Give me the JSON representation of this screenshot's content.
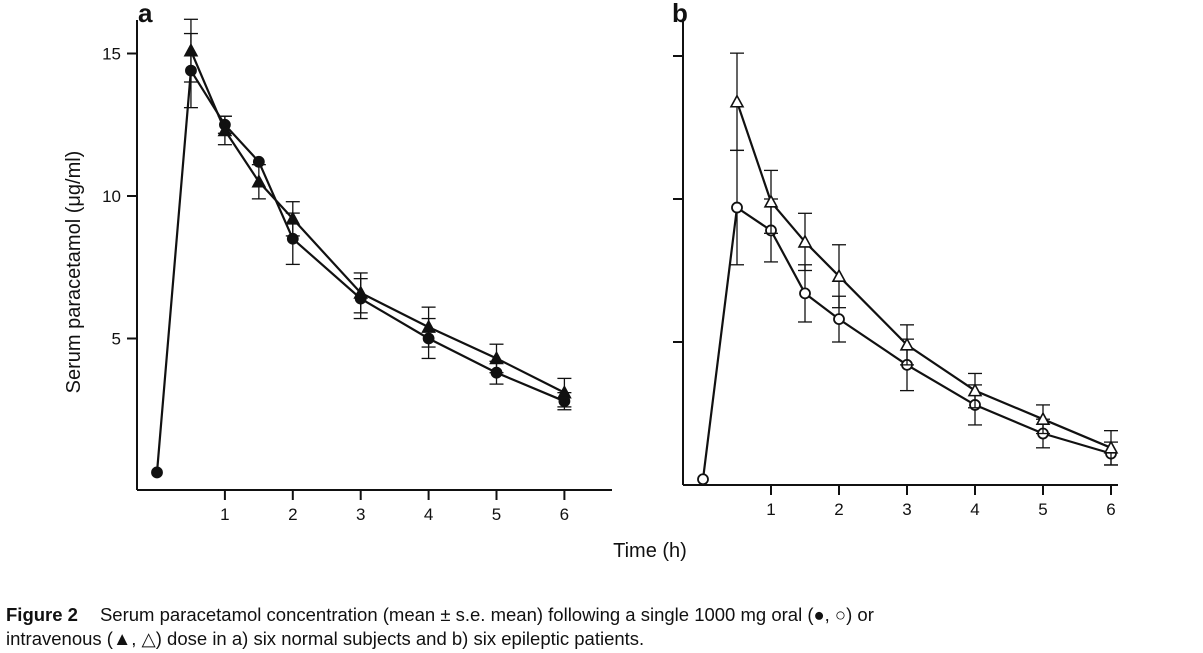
{
  "chart_data": [
    {
      "type": "line",
      "panel_label": "a",
      "xlabel": "Time (h)",
      "ylabel": "Serum paracetamol (μg/ml)",
      "xlim": [
        -0.2,
        6.3
      ],
      "ylim": [
        0,
        16
      ],
      "x_ticks": [
        1,
        2,
        3,
        4,
        5,
        6
      ],
      "y_ticks": [
        5,
        10,
        15
      ],
      "show_y_tick_labels": true,
      "series": [
        {
          "marker": "filled-circle",
          "points": [
            {
              "x": 0,
              "y": 0.3,
              "err": 0
            },
            {
              "x": 0.5,
              "y": 14.4,
              "err": 1.3
            },
            {
              "x": 1,
              "y": 12.5,
              "err": 0.3
            },
            {
              "x": 1.5,
              "y": 11.2,
              "err": 0
            },
            {
              "x": 2,
              "y": 8.5,
              "err": 0.9
            },
            {
              "x": 3,
              "y": 6.4,
              "err": 0.7
            },
            {
              "x": 4,
              "y": 5.0,
              "err": 0.7
            },
            {
              "x": 5,
              "y": 3.8,
              "err": 0.4
            },
            {
              "x": 6,
              "y": 2.8,
              "err": 0.3
            }
          ]
        },
        {
          "marker": "filled-triangle",
          "points": [
            {
              "x": 0.5,
              "y": 15.1,
              "err": 1.1
            },
            {
              "x": 1,
              "y": 12.3,
              "err": 0.5
            },
            {
              "x": 1.5,
              "y": 10.5,
              "err": 0.6
            },
            {
              "x": 2,
              "y": 9.2,
              "err": 0.6
            },
            {
              "x": 3,
              "y": 6.6,
              "err": 0.7
            },
            {
              "x": 4,
              "y": 5.4,
              "err": 0.7
            },
            {
              "x": 5,
              "y": 4.3,
              "err": 0.5
            },
            {
              "x": 6,
              "y": 3.1,
              "err": 0.5
            }
          ]
        }
      ]
    },
    {
      "type": "line",
      "panel_label": "b",
      "xlim": [
        -0.2,
        6.3
      ],
      "ylim": [
        0,
        16
      ],
      "x_ticks": [
        1,
        2,
        3,
        4,
        5,
        6
      ],
      "y_ticks": [
        5,
        10,
        15
      ],
      "show_y_tick_labels": false,
      "series": [
        {
          "marker": "open-circle",
          "points": [
            {
              "x": 0,
              "y": 0.2,
              "err": 0
            },
            {
              "x": 0.5,
              "y": 9.7,
              "err": 2.0
            },
            {
              "x": 1,
              "y": 8.9,
              "err": 1.1
            },
            {
              "x": 1.5,
              "y": 6.7,
              "err": 1.0
            },
            {
              "x": 2,
              "y": 5.8,
              "err": 0.8
            },
            {
              "x": 3,
              "y": 4.2,
              "err": 0.9
            },
            {
              "x": 4,
              "y": 2.8,
              "err": 0.7
            },
            {
              "x": 5,
              "y": 1.8,
              "err": 0.5
            },
            {
              "x": 6,
              "y": 1.1,
              "err": 0.4
            }
          ]
        },
        {
          "marker": "open-triangle",
          "points": [
            {
              "x": 0.5,
              "y": 13.4,
              "err": 1.7
            },
            {
              "x": 1,
              "y": 9.9,
              "err": 1.1
            },
            {
              "x": 1.5,
              "y": 8.5,
              "err": 1.0
            },
            {
              "x": 2,
              "y": 7.3,
              "err": 1.1
            },
            {
              "x": 3,
              "y": 4.9,
              "err": 0.7
            },
            {
              "x": 4,
              "y": 3.3,
              "err": 0.6
            },
            {
              "x": 5,
              "y": 2.3,
              "err": 0.5
            },
            {
              "x": 6,
              "y": 1.3,
              "err": 0.6
            }
          ]
        }
      ]
    }
  ],
  "caption": {
    "figure_number": "Figure 2",
    "text_line1": "Serum paracetamol concentration (mean ± s.e. mean) following a single 1000 mg oral (●, ○) or",
    "text_line2": "intravenous (▲, △) dose in a) six normal subjects and b) six epileptic patients."
  }
}
